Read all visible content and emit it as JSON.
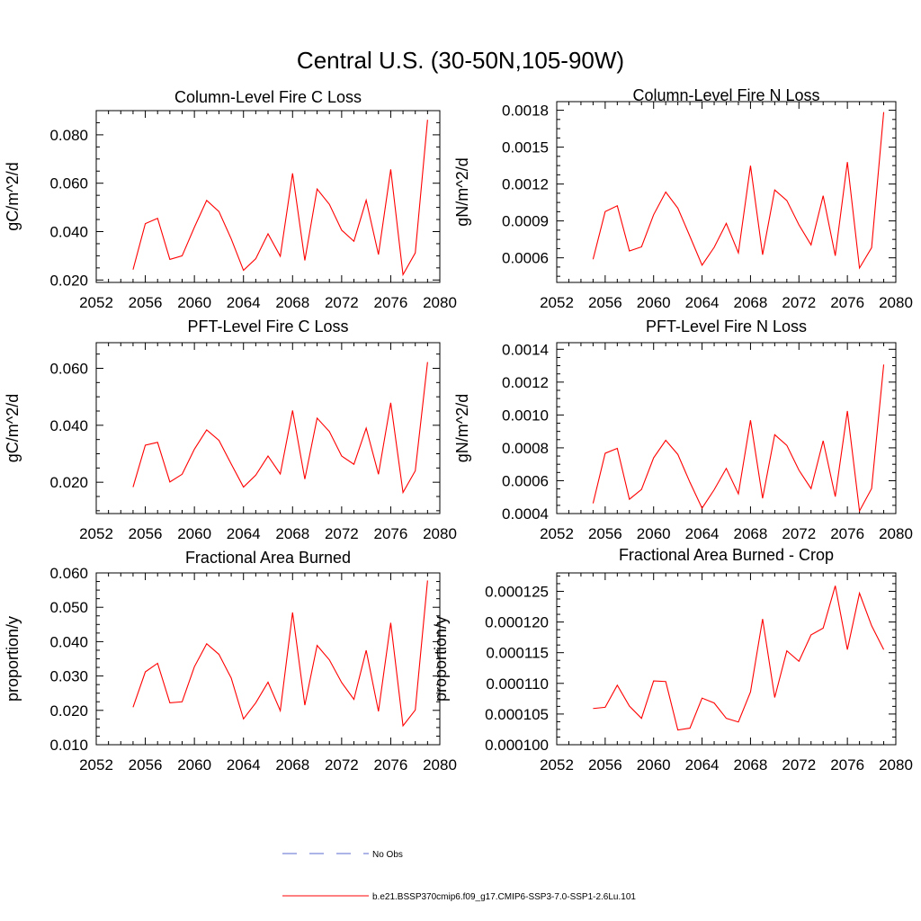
{
  "figure_title": "Central U.S. (30-50N,105-90W)",
  "legend": [
    {
      "label": "No Obs",
      "color": "#5a6ad0",
      "style": "dashed"
    },
    {
      "label": "b.e21.BSSP370cmip6.f09_g17.CMIP6-SSP3-7.0-SSP1-2.6Lu.101",
      "color": "#ff0000",
      "style": "solid"
    }
  ],
  "chart_data": [
    {
      "type": "line",
      "title": "Column-Level Fire C Loss",
      "ylabel": "gC/m^2/d",
      "xlim": [
        2052,
        2080
      ],
      "xticks": [
        "2052",
        "2056",
        "2060",
        "2064",
        "2068",
        "2072",
        "2076",
        "2080"
      ],
      "ylim": [
        0.019,
        0.09
      ],
      "yticks": [
        0.02,
        0.04,
        0.06,
        0.08
      ],
      "ytick_labels": [
        "0.020",
        "0.040",
        "0.060",
        "0.080"
      ],
      "x": [
        2055,
        2056,
        2057,
        2058,
        2059,
        2060,
        2061,
        2062,
        2063,
        2064,
        2065,
        2066,
        2067,
        2068,
        2069,
        2070,
        2071,
        2072,
        2073,
        2074,
        2075,
        2076,
        2077,
        2078,
        2079
      ],
      "series": [
        {
          "color": "#ff0000",
          "values": [
            0.0243,
            0.0433,
            0.0455,
            0.0285,
            0.03,
            0.0418,
            0.0529,
            0.0483,
            0.037,
            0.024,
            0.0288,
            0.0391,
            0.0298,
            0.0641,
            0.0281,
            0.0576,
            0.0513,
            0.0406,
            0.036,
            0.053,
            0.0305,
            0.0657,
            0.0222,
            0.0312,
            0.0862
          ]
        }
      ]
    },
    {
      "type": "line",
      "title": "Column-Level Fire N Loss",
      "ylabel": "gN/m^2/d",
      "xlim": [
        2052,
        2080
      ],
      "xticks": [
        "2052",
        "2056",
        "2060",
        "2064",
        "2068",
        "2072",
        "2076",
        "2080"
      ],
      "ylim": [
        0.0004,
        0.00187
      ],
      "yticks": [
        0.0006,
        0.0009,
        0.0012,
        0.0015,
        0.0018
      ],
      "ytick_labels": [
        "0.0006",
        "0.0009",
        "0.0012",
        "0.0015",
        "0.0018"
      ],
      "x": [
        2055,
        2056,
        2057,
        2058,
        2059,
        2060,
        2061,
        2062,
        2063,
        2064,
        2065,
        2066,
        2067,
        2068,
        2069,
        2070,
        2071,
        2072,
        2073,
        2074,
        2075,
        2076,
        2077,
        2078,
        2079
      ],
      "series": [
        {
          "color": "#ff0000",
          "values": [
            0.000588,
            0.000976,
            0.001023,
            0.000656,
            0.000689,
            0.00095,
            0.001135,
            0.001004,
            0.000774,
            0.00054,
            0.000685,
            0.00088,
            0.00064,
            0.001349,
            0.000625,
            0.001152,
            0.001066,
            0.000868,
            0.000705,
            0.001105,
            0.000617,
            0.001379,
            0.000517,
            0.000682,
            0.001785
          ]
        }
      ]
    },
    {
      "type": "line",
      "title": "PFT-Level Fire C Loss",
      "ylabel": "gC/m^2/d",
      "xlim": [
        2052,
        2080
      ],
      "xticks": [
        "2052",
        "2056",
        "2060",
        "2064",
        "2068",
        "2072",
        "2076",
        "2080"
      ],
      "ylim": [
        0.009,
        0.069
      ],
      "yticks": [
        0.02,
        0.04,
        0.06
      ],
      "ytick_labels": [
        "0.020",
        "0.040",
        "0.060"
      ],
      "x": [
        2055,
        2056,
        2057,
        2058,
        2059,
        2060,
        2061,
        2062,
        2063,
        2064,
        2065,
        2066,
        2067,
        2068,
        2069,
        2070,
        2071,
        2072,
        2073,
        2074,
        2075,
        2076,
        2077,
        2078,
        2079
      ],
      "series": [
        {
          "color": "#ff0000",
          "values": [
            0.0183,
            0.033,
            0.034,
            0.0201,
            0.0228,
            0.0316,
            0.0384,
            0.0347,
            0.0264,
            0.0183,
            0.0225,
            0.0292,
            0.0229,
            0.0452,
            0.0211,
            0.0425,
            0.0378,
            0.0292,
            0.0263,
            0.039,
            0.0228,
            0.0479,
            0.0164,
            0.024,
            0.0622
          ]
        }
      ]
    },
    {
      "type": "line",
      "title": "PFT-Level Fire N Loss",
      "ylabel": "gN/m^2/d",
      "xlim": [
        2052,
        2080
      ],
      "xticks": [
        "2052",
        "2056",
        "2060",
        "2064",
        "2068",
        "2072",
        "2076",
        "2080"
      ],
      "ylim": [
        0.0004,
        0.00144
      ],
      "yticks": [
        0.0004,
        0.0006,
        0.0008,
        0.001,
        0.0012,
        0.0014
      ],
      "ytick_labels": [
        "0.0004",
        "0.0006",
        "0.0008",
        "0.0010",
        "0.0012",
        "0.0014"
      ],
      "x": [
        2055,
        2056,
        2057,
        2058,
        2059,
        2060,
        2061,
        2062,
        2063,
        2064,
        2065,
        2066,
        2067,
        2068,
        2069,
        2070,
        2071,
        2072,
        2073,
        2074,
        2075,
        2076,
        2077,
        2078,
        2079
      ],
      "series": [
        {
          "color": "#ff0000",
          "values": [
            0.000462,
            0.000767,
            0.000797,
            0.000487,
            0.000547,
            0.000739,
            0.000846,
            0.00076,
            0.00059,
            0.000433,
            0.000545,
            0.000675,
            0.00052,
            0.000968,
            0.000493,
            0.00088,
            0.000815,
            0.000664,
            0.000552,
            0.000843,
            0.000503,
            0.001024,
            0.000416,
            0.000552,
            0.001307
          ]
        }
      ]
    },
    {
      "type": "line",
      "title": "Fractional Area Burned",
      "ylabel": "proportion/y",
      "xlim": [
        2052,
        2080
      ],
      "xticks": [
        "2052",
        "2056",
        "2060",
        "2064",
        "2068",
        "2072",
        "2076",
        "2080"
      ],
      "ylim": [
        0.01,
        0.06
      ],
      "yticks": [
        0.01,
        0.02,
        0.03,
        0.04,
        0.05,
        0.06
      ],
      "ytick_labels": [
        "0.010",
        "0.020",
        "0.030",
        "0.040",
        "0.050",
        "0.060"
      ],
      "x": [
        2055,
        2056,
        2057,
        2058,
        2059,
        2060,
        2061,
        2062,
        2063,
        2064,
        2065,
        2066,
        2067,
        2068,
        2069,
        2070,
        2071,
        2072,
        2073,
        2074,
        2075,
        2076,
        2077,
        2078,
        2079
      ],
      "series": [
        {
          "color": "#ff0000",
          "values": [
            0.0209,
            0.0312,
            0.0337,
            0.0222,
            0.0225,
            0.0327,
            0.0394,
            0.0363,
            0.0294,
            0.0175,
            0.0222,
            0.0282,
            0.0199,
            0.0485,
            0.0215,
            0.0389,
            0.0347,
            0.0281,
            0.0232,
            0.0375,
            0.0197,
            0.0455,
            0.0155,
            0.0201,
            0.0578
          ]
        }
      ]
    },
    {
      "type": "line",
      "title": "Fractional Area Burned - Crop",
      "ylabel": "proportion/y",
      "xlim": [
        2052,
        2080
      ],
      "xticks": [
        "2052",
        "2056",
        "2060",
        "2064",
        "2068",
        "2072",
        "2076",
        "2080"
      ],
      "ylim": [
        0.0001,
        0.000128
      ],
      "yticks": [
        0.0001,
        0.000105,
        0.00011,
        0.000115,
        0.00012,
        0.000125
      ],
      "ytick_labels": [
        "0.000100",
        "0.000105",
        "0.000110",
        "0.000115",
        "0.000120",
        "0.000125"
      ],
      "x": [
        2055,
        2056,
        2057,
        2058,
        2059,
        2060,
        2061,
        2062,
        2063,
        2064,
        2065,
        2066,
        2067,
        2068,
        2069,
        2070,
        2071,
        2072,
        2073,
        2074,
        2075,
        2076,
        2077,
        2078,
        2079
      ],
      "series": [
        {
          "color": "#ff0000",
          "values": [
            0.0001059,
            0.0001061,
            0.0001097,
            0.0001063,
            0.0001043,
            0.0001104,
            0.0001103,
            0.0001024,
            0.0001027,
            0.0001076,
            0.0001068,
            0.0001043,
            0.0001037,
            0.0001086,
            0.0001205,
            0.0001077,
            0.0001153,
            0.0001136,
            0.0001179,
            0.000119,
            0.0001259,
            0.0001155,
            0.0001247,
            0.0001194,
            0.0001155
          ]
        }
      ]
    }
  ]
}
